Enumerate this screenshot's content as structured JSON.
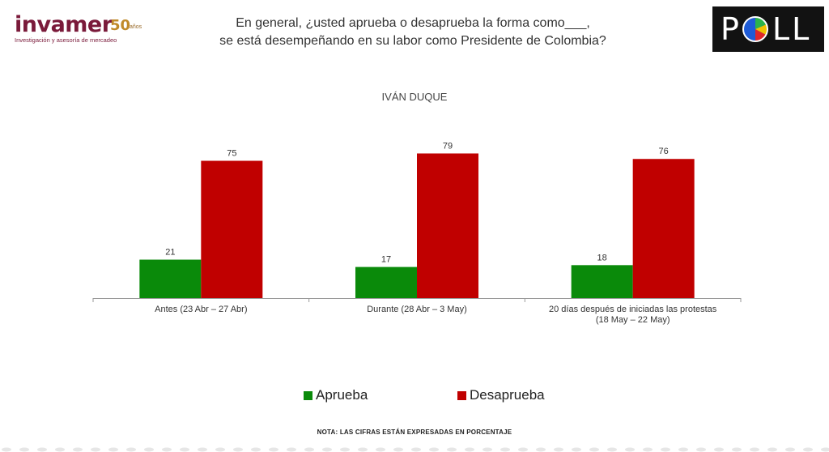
{
  "logo": {
    "brand": "invamer",
    "years": "50",
    "years_suffix": "años",
    "tagline": "Investigación y asesoría de mercadeo",
    "brand_color": "#7a1a3a",
    "accent_color": "#c08a2a"
  },
  "question": {
    "line1": "En general, ¿usted aprueba o desaprueba la forma como___,",
    "line2": "se está desempeñando en su labor como Presidente de Colombia?"
  },
  "poll_logo": {
    "text_left": "P",
    "text_right": "LL"
  },
  "subtitle": "IVÁN DUQUE",
  "chart_data": {
    "type": "bar",
    "title": "IVÁN DUQUE",
    "categories": [
      [
        "Antes (23 Abr – 27 Abr)"
      ],
      [
        "Durante (28 Abr – 3 May)"
      ],
      [
        "20 días después de iniciadas las protestas",
        "(18 May – 22 May)"
      ]
    ],
    "series": [
      {
        "name": "Aprueba",
        "color": "#0a8a0a",
        "values": [
          21,
          17,
          18
        ]
      },
      {
        "name": "Desaprueba",
        "color": "#c00000",
        "values": [
          75,
          79,
          76
        ]
      }
    ],
    "ylim": [
      0,
      100
    ],
    "grid": false,
    "legend_position": "bottom"
  },
  "legend": [
    {
      "label": "Aprueba",
      "color": "#0a8a0a"
    },
    {
      "label": "Desaprueba",
      "color": "#c00000"
    }
  ],
  "note": "NOTA: LAS CIFRAS ESTÁN EXPRESADAS EN PORCENTAJE"
}
